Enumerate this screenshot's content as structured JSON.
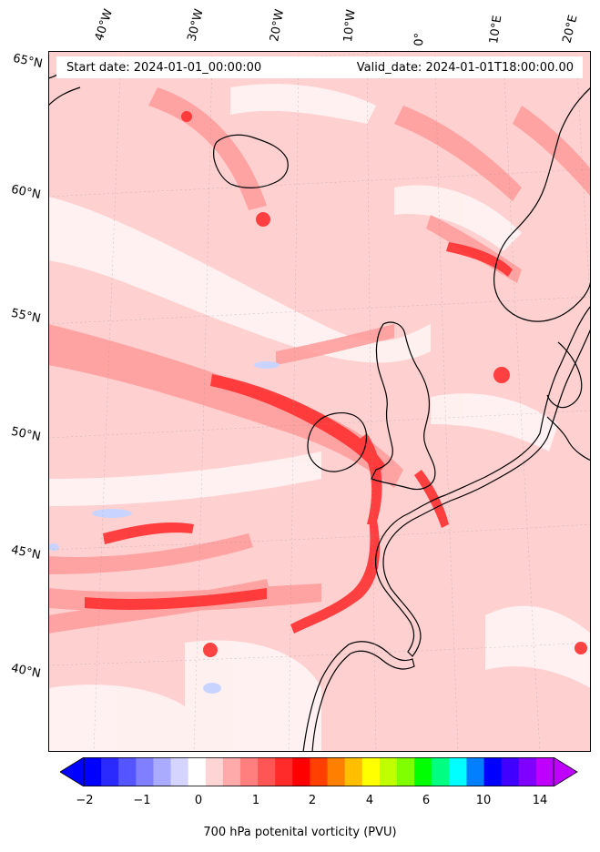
{
  "header": {
    "start_date": "Start date: 2024-01-01_00:00:00",
    "valid_date": "Valid_date: 2024-01-01T18:00:00.00"
  },
  "longitude_labels": [
    "40°W",
    "30°W",
    "20°W",
    "10°W",
    "0°",
    "10°E",
    "20°E"
  ],
  "latitude_labels": [
    "65°N",
    "60°N",
    "55°N",
    "50°N",
    "45°N",
    "40°N"
  ],
  "colorbar": {
    "label": "700 hPa potenital vorticity (PVU)",
    "ticks": [
      "−2",
      "−1",
      "0",
      "1",
      "2",
      "4",
      "6",
      "10",
      "14"
    ],
    "colors": [
      "#0000ff",
      "#2a2aff",
      "#5555ff",
      "#7f7fff",
      "#aaaaff",
      "#d4d4ff",
      "#ffffff",
      "#ffd4d4",
      "#ffaaaa",
      "#ff7f7f",
      "#ff5555",
      "#ff2a2a",
      "#ff0000",
      "#ff4000",
      "#ff8000",
      "#ffbf00",
      "#ffff00",
      "#bfff00",
      "#80ff00",
      "#00ff00",
      "#00ff80",
      "#00ffff",
      "#0080ff",
      "#0000ff",
      "#4000ff",
      "#8000ff",
      "#bf00ff"
    ],
    "extend_low_color": "#0000ff",
    "extend_high_color": "#bf00ff"
  },
  "map_colors": {
    "background": "#ffd0d0",
    "light": "#ffe6e6",
    "medium": "#ff9a9a",
    "strong": "#ff3030",
    "white": "#fff6f6",
    "blue": "#c8d4ff",
    "coast": "#000000"
  }
}
